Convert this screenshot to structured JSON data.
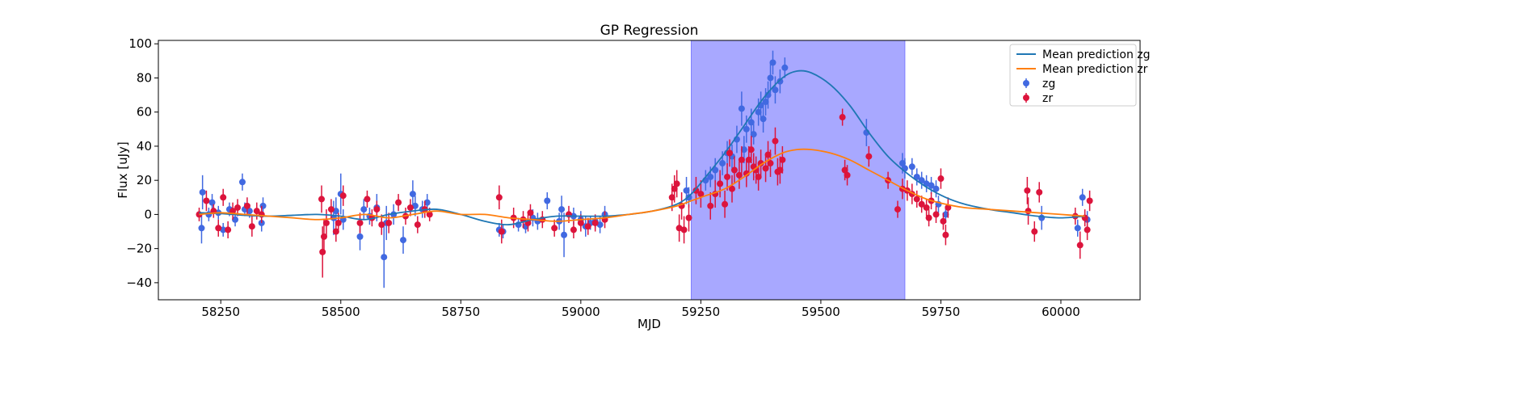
{
  "chart_data": {
    "type": "scatter",
    "title": "GP Regression",
    "xlabel": "MJD",
    "ylabel": "Flux [uJy]",
    "xlim": [
      58120,
      60165
    ],
    "ylim": [
      -50,
      102
    ],
    "xticks": [
      58250,
      58500,
      58750,
      59000,
      59250,
      59500,
      59750,
      60000
    ],
    "yticks": [
      -40,
      -20,
      0,
      20,
      40,
      60,
      80,
      100
    ],
    "grid": false,
    "legend_position": "top-right",
    "shaded_region": {
      "x_start": 59230,
      "x_end": 59675,
      "color": "#a8a8ff"
    },
    "series": [
      {
        "name": "Mean prediction zg",
        "kind": "line",
        "color": "#1f77b4",
        "x": [
          58205,
          58250,
          58300,
          58350,
          58400,
          58450,
          58500,
          58550,
          58600,
          58650,
          58700,
          58750,
          58800,
          58850,
          58900,
          58950,
          59000,
          59050,
          59100,
          59150,
          59200,
          59230,
          59260,
          59300,
          59340,
          59380,
          59420,
          59450,
          59480,
          59520,
          59560,
          59600,
          59640,
          59680,
          59720,
          59760,
          59800,
          59850,
          59900,
          59950,
          60000,
          60050
        ],
        "y": [
          1,
          0.5,
          -0.5,
          -1,
          -0.5,
          0,
          -1,
          -3,
          0,
          2,
          3,
          0,
          -4,
          -6,
          -3,
          -1,
          -1,
          -1,
          0,
          2,
          6,
          12,
          22,
          36,
          52,
          68,
          80,
          84,
          83,
          76,
          64,
          48,
          34,
          24,
          16,
          10,
          6,
          3,
          1,
          -1,
          -2,
          -1
        ]
      },
      {
        "name": "Mean prediction zr",
        "kind": "line",
        "color": "#ff7f0e",
        "x": [
          58205,
          58250,
          58300,
          58350,
          58400,
          58450,
          58500,
          58550,
          58600,
          58650,
          58700,
          58750,
          58800,
          58850,
          58900,
          58950,
          59000,
          59050,
          59100,
          59150,
          59200,
          59230,
          59260,
          59300,
          59340,
          59380,
          59420,
          59450,
          59480,
          59520,
          59560,
          59600,
          59640,
          59680,
          59720,
          59760,
          59800,
          59850,
          59900,
          59950,
          60000,
          60050
        ],
        "y": [
          0,
          1,
          0,
          -1,
          -2,
          -3,
          -2,
          0,
          -2,
          0,
          2,
          0,
          0,
          -2,
          -3,
          -4,
          -3,
          -2,
          0,
          2,
          5,
          8,
          11,
          15,
          22,
          30,
          36,
          38,
          38,
          36,
          32,
          26,
          20,
          14,
          9,
          6,
          4,
          3,
          2,
          1,
          0,
          -1
        ]
      },
      {
        "name": "zg",
        "kind": "errorbar",
        "color": "#4169e1",
        "x": [
          58210,
          58212,
          58225,
          58232,
          58245,
          58255,
          58268,
          58280,
          58295,
          58300,
          58310,
          58335,
          58338,
          58485,
          58490,
          58500,
          58505,
          58540,
          58548,
          58560,
          58575,
          58590,
          58595,
          58610,
          58630,
          58650,
          58655,
          58670,
          58680,
          58830,
          58838,
          58870,
          58885,
          58900,
          58910,
          58930,
          58955,
          58960,
          58965,
          58985,
          59000,
          59010,
          59020,
          59030,
          59040,
          59050,
          59220,
          59225,
          59260,
          59270,
          59280,
          59290,
          59295,
          59305,
          59315,
          59325,
          59335,
          59340,
          59345,
          59355,
          59360,
          59370,
          59375,
          59380,
          59385,
          59390,
          59395,
          59400,
          59405,
          59415,
          59425,
          59595,
          59670,
          59675,
          59690,
          59700,
          59710,
          59720,
          59730,
          59740,
          59745,
          59760,
          59960,
          60035,
          60045,
          60055
        ],
        "y": [
          -8,
          13,
          0,
          7,
          1,
          -9,
          3,
          -3,
          19,
          3,
          2,
          -5,
          5,
          -2,
          2,
          12,
          -3,
          -13,
          3,
          -1,
          4,
          -25,
          -5,
          0,
          -15,
          12,
          5,
          3,
          7,
          -9,
          -10,
          -6,
          -7,
          -2,
          -4,
          8,
          -4,
          3,
          -12,
          -1,
          -3,
          -7,
          -5,
          -4,
          -6,
          0,
          14,
          10,
          20,
          22,
          26,
          18,
          30,
          36,
          34,
          44,
          62,
          38,
          50,
          54,
          47,
          60,
          64,
          56,
          66,
          70,
          80,
          89,
          73,
          78,
          86,
          48,
          30,
          27,
          28,
          22,
          20,
          18,
          17,
          15,
          6,
          0,
          -2,
          -8,
          10,
          -3
        ],
        "yerr": [
          9,
          10,
          4,
          5,
          4,
          4,
          4,
          4,
          5,
          4,
          4,
          5,
          5,
          10,
          8,
          12,
          6,
          8,
          6,
          5,
          8,
          18,
          10,
          6,
          8,
          8,
          6,
          5,
          5,
          4,
          4,
          4,
          4,
          5,
          5,
          5,
          5,
          8,
          13,
          5,
          5,
          6,
          4,
          4,
          5,
          5,
          8,
          6,
          6,
          6,
          7,
          6,
          7,
          7,
          7,
          8,
          10,
          8,
          8,
          8,
          6,
          8,
          8,
          8,
          8,
          8,
          9,
          7,
          8,
          7,
          6,
          8,
          6,
          6,
          5,
          5,
          5,
          5,
          5,
          5,
          5,
          5,
          7,
          5,
          5,
          5
        ]
      },
      {
        "name": "zr",
        "kind": "errorbar",
        "color": "#dc143c",
        "x": [
          58205,
          58220,
          58235,
          58245,
          58255,
          58265,
          58275,
          58285,
          58305,
          58315,
          58325,
          58335,
          58460,
          58462,
          58465,
          58470,
          58480,
          58490,
          58495,
          58505,
          58540,
          58555,
          58565,
          58575,
          58585,
          58600,
          58620,
          58635,
          58645,
          58660,
          58675,
          58685,
          58830,
          58835,
          58860,
          58880,
          58890,
          58895,
          58920,
          58945,
          58975,
          58985,
          59000,
          59015,
          59030,
          59050,
          59190,
          59195,
          59200,
          59205,
          59210,
          59215,
          59225,
          59240,
          59250,
          59270,
          59280,
          59290,
          59300,
          59305,
          59310,
          59315,
          59320,
          59330,
          59335,
          59345,
          59350,
          59355,
          59360,
          59365,
          59370,
          59375,
          59385,
          59390,
          59395,
          59405,
          59410,
          59415,
          59420,
          59545,
          59550,
          59555,
          59600,
          59640,
          59660,
          59670,
          59680,
          59690,
          59700,
          59710,
          59720,
          59725,
          59730,
          59740,
          59750,
          59755,
          59760,
          59765,
          59930,
          59932,
          59945,
          59955,
          60030,
          60040,
          60050,
          60055,
          60060
        ],
        "y": [
          0,
          8,
          2,
          -8,
          10,
          -9,
          2,
          4,
          5,
          -7,
          2,
          0,
          9,
          -22,
          -13,
          -5,
          3,
          -10,
          -5,
          11,
          -5,
          9,
          -2,
          3,
          -6,
          -5,
          7,
          -1,
          4,
          -6,
          3,
          0,
          10,
          -10,
          -2,
          -3,
          -5,
          1,
          -3,
          -8,
          0,
          -9,
          -5,
          -7,
          -5,
          -3,
          10,
          15,
          18,
          -8,
          5,
          -9,
          -2,
          14,
          12,
          5,
          12,
          18,
          6,
          22,
          36,
          15,
          26,
          23,
          32,
          24,
          32,
          38,
          28,
          26,
          22,
          30,
          27,
          35,
          30,
          43,
          25,
          26,
          32,
          57,
          26,
          23,
          34,
          20,
          3,
          15,
          14,
          12,
          9,
          6,
          4,
          -2,
          8,
          0,
          21,
          -4,
          -12,
          4,
          14,
          2,
          -10,
          13,
          -1,
          -18,
          -2,
          -9,
          8
        ],
        "yerr": [
          4,
          6,
          4,
          5,
          5,
          5,
          5,
          5,
          5,
          6,
          5,
          5,
          8,
          15,
          10,
          8,
          6,
          6,
          6,
          6,
          6,
          5,
          5,
          5,
          6,
          6,
          5,
          5,
          5,
          5,
          5,
          4,
          7,
          7,
          6,
          5,
          5,
          5,
          5,
          5,
          5,
          5,
          5,
          5,
          5,
          5,
          8,
          8,
          8,
          8,
          8,
          8,
          8,
          8,
          8,
          8,
          8,
          8,
          8,
          8,
          8,
          8,
          8,
          8,
          8,
          8,
          8,
          8,
          8,
          8,
          8,
          8,
          8,
          8,
          8,
          8,
          8,
          8,
          8,
          5,
          6,
          6,
          6,
          5,
          5,
          6,
          6,
          6,
          5,
          5,
          5,
          5,
          5,
          5,
          6,
          5,
          6,
          6,
          8,
          8,
          6,
          6,
          5,
          8,
          5,
          6,
          6
        ]
      }
    ]
  }
}
